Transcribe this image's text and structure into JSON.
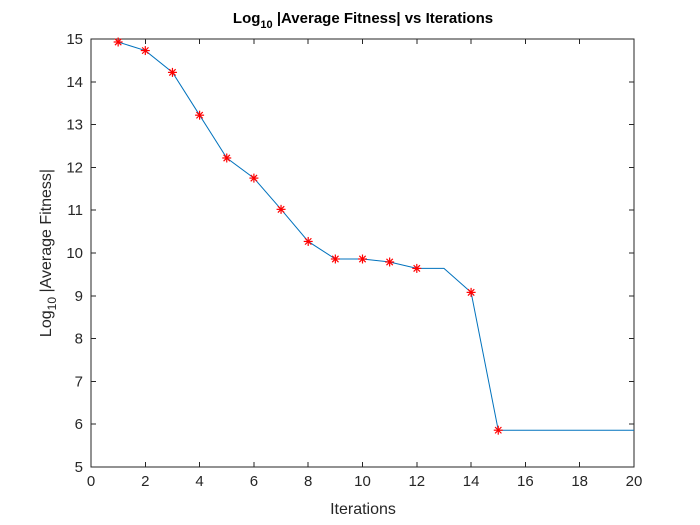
{
  "chart_data": {
    "type": "line",
    "title": {
      "prefix": "Log",
      "subscript": "10",
      "suffix": " |Average Fitness| vs Iterations"
    },
    "xlabel": "Iterations",
    "ylabel": {
      "prefix": "Log",
      "subscript": "10",
      "suffix": " |Average Fitness|"
    },
    "xlim": [
      0,
      20
    ],
    "ylim": [
      5,
      15
    ],
    "xticks": [
      0,
      2,
      4,
      6,
      8,
      10,
      12,
      14,
      16,
      18,
      20
    ],
    "yticks": [
      5,
      6,
      7,
      8,
      9,
      10,
      11,
      12,
      13,
      14,
      15
    ],
    "grid": false,
    "line_color": "#0072BD",
    "marker_color": "#FF0000",
    "marker": "asterisk",
    "series": [
      {
        "x": [
          1,
          2,
          3,
          4,
          5,
          6,
          7,
          8,
          9,
          10,
          11,
          12,
          13,
          14,
          15,
          16,
          17,
          18,
          19,
          20
        ],
        "values": [
          14.93,
          14.73,
          14.22,
          13.22,
          12.22,
          11.75,
          11.02,
          10.27,
          9.86,
          9.86,
          9.79,
          9.64,
          9.64,
          9.08,
          5.86,
          5.86,
          5.86,
          5.86,
          5.86,
          5.86
        ],
        "markers_x": [
          1,
          2,
          3,
          4,
          5,
          6,
          7,
          8,
          9,
          10,
          11,
          12,
          14,
          15
        ],
        "markers_y": [
          14.93,
          14.73,
          14.22,
          13.22,
          12.22,
          11.75,
          11.02,
          10.27,
          9.86,
          9.86,
          9.79,
          9.64,
          9.08,
          5.86
        ]
      }
    ]
  }
}
